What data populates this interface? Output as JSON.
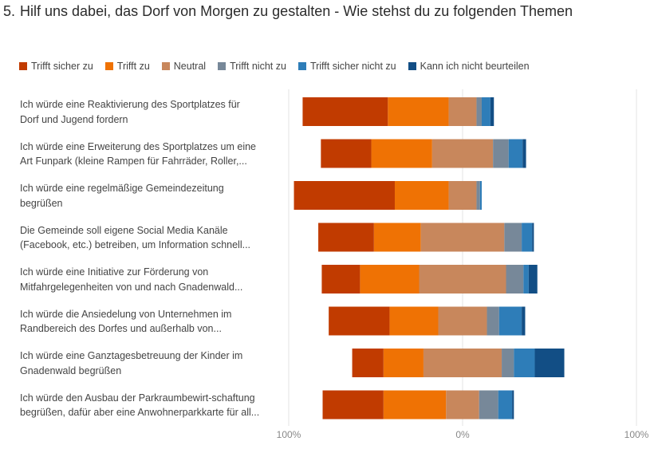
{
  "question": {
    "number": "5.",
    "title": "Hilf uns dabei, das Dorf von Morgen zu gestalten - Wie stehst du zu folgenden Themen"
  },
  "chart_data": {
    "type": "bar",
    "orientation": "horizontal-diverging-stacked",
    "legend_position": "top",
    "grid": true,
    "xlim": [
      -100,
      100
    ],
    "tick_labels": [
      "100%",
      "0%",
      "100%"
    ],
    "series_names": [
      "Trifft sicher zu",
      "Trifft zu",
      "Neutral",
      "Trifft nicht zu",
      "Trifft sicher nicht zu",
      "Kann ich nicht beurteilen"
    ],
    "series_colors": [
      "#C13B00",
      "#EF7204",
      "#C8875C",
      "#778899",
      "#2E7DB8",
      "#124E85"
    ],
    "categories": [
      [
        "Ich würde eine Reaktivierung des Sportplatzes für",
        "Dorf und Jugend fordern"
      ],
      [
        "Ich würde eine Erweiterung des Sportplatzes um eine",
        "Art Funpark (kleine Rampen für Fahrräder, Roller,..."
      ],
      [
        "Ich würde eine regelmäßige Gemeindezeitung",
        "begrüßen"
      ],
      [
        "Die Gemeinde soll eigene Social Media Kanäle",
        "(Facebook, etc.) betreiben, um Information schnell..."
      ],
      [
        "Ich würde eine Initiative zur Förderung von",
        "Mitfahrgelegenheiten von und nach Gnadenwald..."
      ],
      [
        "Ich würde die Ansiedelung von Unternehmen im",
        "Randbereich des Dorfes und außerhalb von..."
      ],
      [
        "Ich würde eine Ganztagesbetreuung der Kinder im",
        "Gnadenwald begrüßen"
      ],
      [
        "Ich würde den Ausbau der Parkraumbewirt-schaftung",
        "begrüßen, dafür aber eine Anwohnerparkkarte für all..."
      ]
    ],
    "series": [
      {
        "name": "Trifft sicher zu",
        "values": [
          49,
          29,
          58,
          32,
          22,
          35,
          18,
          35
        ]
      },
      {
        "name": "Trifft zu",
        "values": [
          35,
          35,
          31,
          27,
          34,
          28,
          23,
          36
        ]
      },
      {
        "name": "Neutral",
        "values": [
          16,
          35,
          16,
          48,
          50,
          28,
          45,
          19
        ]
      },
      {
        "name": "Trifft nicht zu",
        "values": [
          3,
          9,
          2,
          10,
          10,
          7,
          7,
          11
        ]
      },
      {
        "name": "Trifft sicher nicht zu",
        "values": [
          5,
          8,
          1,
          6,
          3,
          13,
          12,
          8
        ]
      },
      {
        "name": "Kann ich nicht beurteilen",
        "values": [
          2,
          2,
          0,
          1,
          5,
          2,
          17,
          1
        ]
      }
    ]
  }
}
